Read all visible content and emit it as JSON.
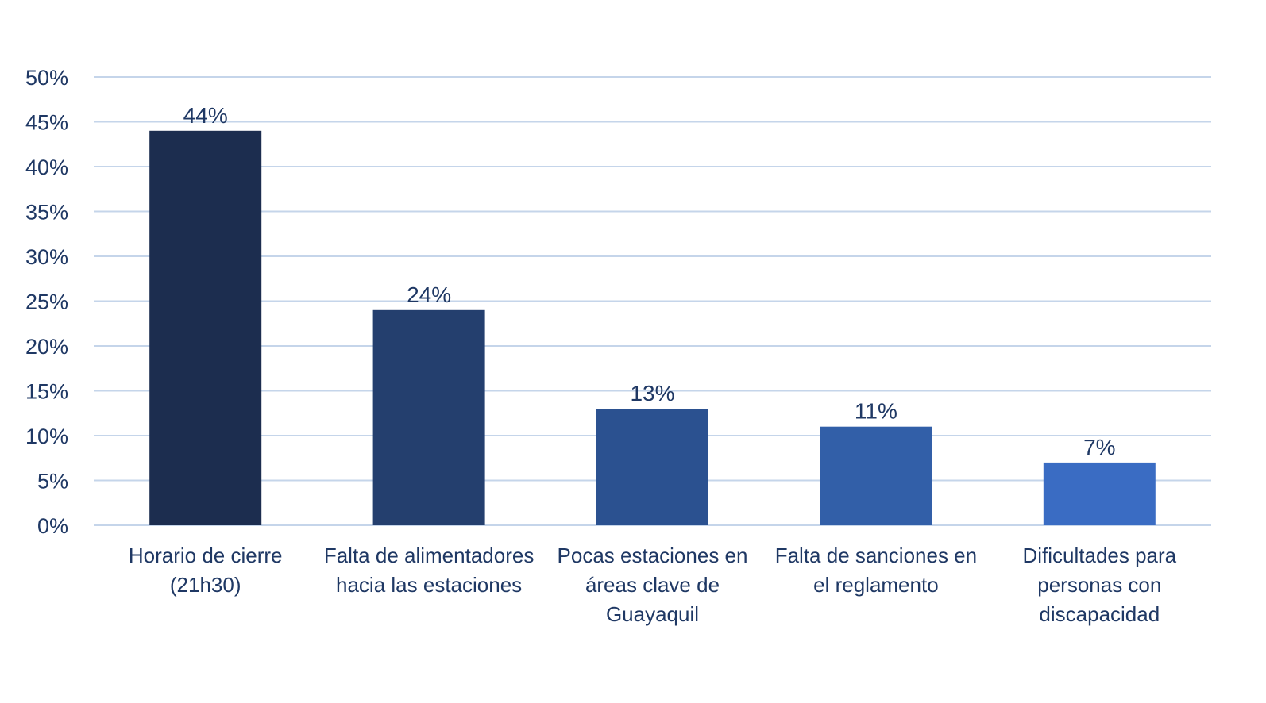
{
  "chart_data": {
    "type": "bar",
    "title": "",
    "xlabel": "",
    "ylabel": "",
    "ylim": [
      0,
      50
    ],
    "yticks": [
      0,
      5,
      10,
      15,
      20,
      25,
      30,
      35,
      40,
      45,
      50
    ],
    "ytick_labels": [
      "0%",
      "5%",
      "10%",
      "15%",
      "20%",
      "25%",
      "30%",
      "35%",
      "40%",
      "45%",
      "50%"
    ],
    "grid": true,
    "legend": "none",
    "categories": [
      [
        "Horario de cierre",
        "(21h30)"
      ],
      [
        "Falta de alimentadores",
        "hacia las estaciones"
      ],
      [
        "Pocas estaciones en",
        "áreas clave de",
        "Guayaquil"
      ],
      [
        "Falta de sanciones en",
        "el reglamento"
      ],
      [
        "Dificultades para",
        "personas con",
        "discapacidad"
      ]
    ],
    "values": [
      44,
      24,
      13,
      11,
      7
    ],
    "data_labels": [
      "44%",
      "24%",
      "13%",
      "11%",
      "7%"
    ],
    "bar_colors": [
      "#1c2d4f",
      "#243f6e",
      "#2b5190",
      "#325fa8",
      "#3a6cc3"
    ]
  },
  "style": {
    "grid_color": "#c5d5ea",
    "text_color": "#1f3864"
  }
}
